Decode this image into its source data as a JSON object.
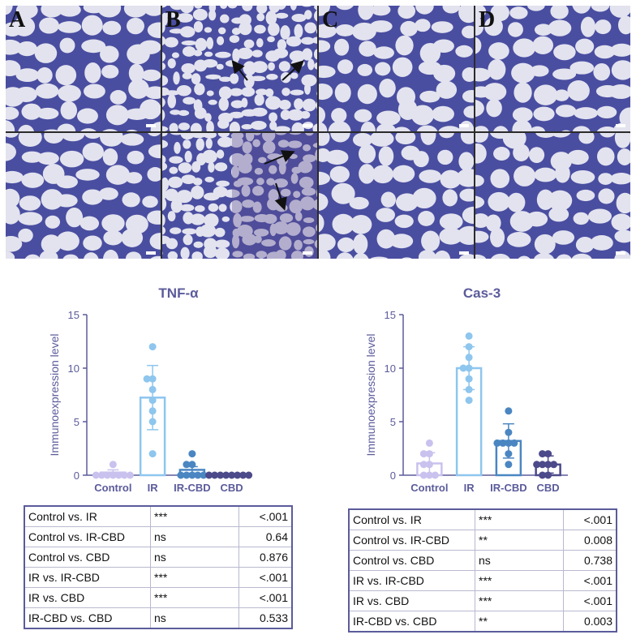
{
  "panels": [
    {
      "letter": "A",
      "condition": "normal"
    },
    {
      "letter": "B",
      "condition": "injured"
    },
    {
      "letter": "C",
      "condition": "normal"
    },
    {
      "letter": "D",
      "condition": "normal"
    }
  ],
  "colors": {
    "Control": "#c9c2ee",
    "IR": "#8ec6ee",
    "IR-CBD": "#4a86c2",
    "CBD": "#4c4a8a",
    "axis": "#5b5b9b",
    "tissue": "#4a4ea0",
    "background_tissue": "#e3e3ef"
  },
  "chart_data": [
    {
      "type": "bar",
      "title": "TNF-α",
      "ylabel": "Immunoexpression level",
      "xlabel": "",
      "ylim": [
        0,
        15
      ],
      "yticks": [
        "0",
        "5",
        "10",
        "15"
      ],
      "categories": [
        "Control",
        "IR",
        "IR-CBD",
        "CBD"
      ],
      "values": [
        0.25,
        7.25,
        0.5,
        0.1
      ],
      "error": [
        0.25,
        3.0,
        0.3,
        0.05
      ],
      "points": [
        [
          0,
          0,
          0,
          0,
          0,
          0,
          1,
          0
        ],
        [
          12,
          8,
          7,
          9,
          6,
          5,
          2,
          9
        ],
        [
          0,
          0,
          0,
          0,
          1,
          1,
          0,
          2
        ],
        [
          0,
          0,
          0,
          0,
          0,
          0,
          0,
          0
        ]
      ]
    },
    {
      "type": "bar",
      "title": "Cas-3",
      "ylabel": "Immunoexpression level",
      "xlabel": "",
      "ylim": [
        0,
        15
      ],
      "yticks": [
        "0",
        "5",
        "10",
        "15"
      ],
      "categories": [
        "Control",
        "IR",
        "IR-CBD",
        "CBD"
      ],
      "values": [
        1.1,
        10.0,
        3.2,
        1.0
      ],
      "error": [
        1.0,
        2.0,
        1.6,
        0.8
      ],
      "points": [
        [
          2,
          3,
          0,
          0,
          1,
          2,
          0,
          1
        ],
        [
          13,
          12,
          11,
          10,
          9,
          8,
          7,
          10
        ],
        [
          6,
          4,
          3,
          3,
          3,
          2,
          1,
          3
        ],
        [
          2,
          2,
          1,
          1,
          0,
          0,
          1,
          1
        ]
      ]
    }
  ],
  "tables": [
    {
      "rows": [
        {
          "comparison": "Control vs. IR",
          "sig": "***",
          "p": "<.001"
        },
        {
          "comparison": "Control vs. IR-CBD",
          "sig": "ns",
          "p": "0.64"
        },
        {
          "comparison": "Control vs. CBD",
          "sig": "ns",
          "p": "0.876"
        },
        {
          "comparison": "IR vs. IR-CBD",
          "sig": "***",
          "p": "<.001"
        },
        {
          "comparison": "IR vs. CBD",
          "sig": "***",
          "p": "<.001"
        },
        {
          "comparison": "IR-CBD vs. CBD",
          "sig": "ns",
          "p": "0.533"
        }
      ]
    },
    {
      "rows": [
        {
          "comparison": "Control vs. IR",
          "sig": "***",
          "p": "<.001"
        },
        {
          "comparison": "Control vs. IR-CBD",
          "sig": "**",
          "p": "0.008"
        },
        {
          "comparison": "Control vs. CBD",
          "sig": "ns",
          "p": "0.738"
        },
        {
          "comparison": "IR vs. IR-CBD",
          "sig": "***",
          "p": "<.001"
        },
        {
          "comparison": "IR vs. CBD",
          "sig": "***",
          "p": "<.001"
        },
        {
          "comparison": "IR-CBD vs. CBD",
          "sig": "**",
          "p": "0.003"
        }
      ]
    }
  ]
}
